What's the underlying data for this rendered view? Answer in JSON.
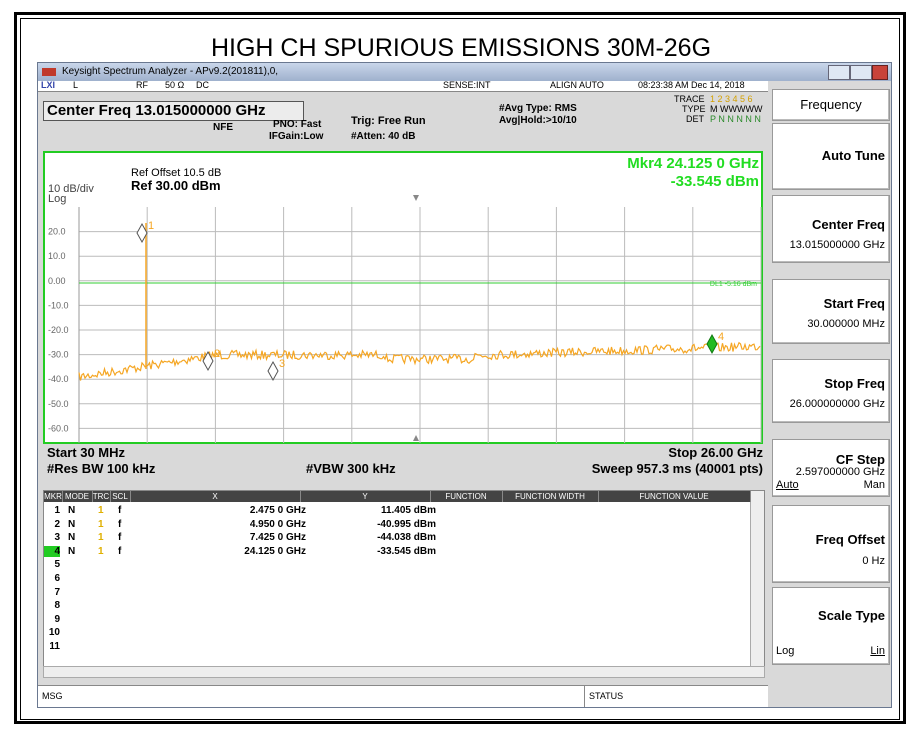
{
  "title": "HIGH CH SPURIOUS EMISSIONS 30M-26G",
  "window": {
    "title": "Keysight Spectrum Analyzer - APv9.2(201811),0,"
  },
  "header": {
    "strip": [
      "LXI",
      "L",
      "RF",
      "50 Ω",
      "DC",
      "SENSE:INT",
      "ALIGN AUTO",
      "08:23:38 AM Dec 14, 2018"
    ],
    "center_freq": "Center Freq 13.015000000 GHz",
    "nfe": "NFE",
    "pno": "PNO: Fast",
    "ifgain": "IFGain:Low",
    "trig": "Trig: Free Run",
    "atten": "#Atten: 40 dB",
    "avg_type": "#Avg Type: RMS",
    "avg_hold": "Avg|Hold:>10/10",
    "trace_label": "TRACE",
    "trace_value": "1 2 3 4 5 6",
    "type_label": "TYPE",
    "type_value": "M WWWWW",
    "det_label": "DET",
    "det_value": "P N N N N N"
  },
  "plot": {
    "ref_offset": "Ref Offset 10.5 dB",
    "ref": "Ref 30.00 dBm",
    "scale": "10 dB/div",
    "log": "Log",
    "y_labels": [
      "20.0",
      "10.0",
      "0.00",
      "-10.0",
      "-20.0",
      "-30.0",
      "-40.0",
      "-50.0",
      "-60.0"
    ],
    "display_line": "DL1 -5.16 dBm",
    "marker_freq": "Mkr4 24.125 0 GHz",
    "marker_amp": "-33.545 dBm",
    "marker_labels": [
      "1",
      "2",
      "3",
      "4"
    ],
    "start": "Start 30 MHz",
    "stop": "Stop 26.00 GHz",
    "res_bw": "#Res BW 100 kHz",
    "vbw": "#VBW 300 kHz",
    "sweep": "Sweep  957.3 ms (40001 pts)"
  },
  "table": {
    "headers": [
      "MKR",
      "MODE",
      "TRC",
      "SCL",
      "X",
      "Y",
      "FUNCTION",
      "FUNCTION WIDTH",
      "FUNCTION VALUE"
    ],
    "rows": [
      [
        "1",
        "N",
        "1",
        "f",
        "2.475 0 GHz",
        "11.405 dBm"
      ],
      [
        "2",
        "N",
        "1",
        "f",
        "4.950 0 GHz",
        "-40.995 dBm"
      ],
      [
        "3",
        "N",
        "1",
        "f",
        "7.425 0 GHz",
        "-44.038 dBm"
      ],
      [
        "4",
        "N",
        "1",
        "f",
        "24.125 0 GHz",
        "-33.545 dBm"
      ],
      [
        "5"
      ],
      [
        "6"
      ],
      [
        "7"
      ],
      [
        "8"
      ],
      [
        "9"
      ],
      [
        "10"
      ],
      [
        "11"
      ]
    ]
  },
  "status": {
    "msg": "MSG",
    "status": "STATUS"
  },
  "softkeys": {
    "menu": "Frequency",
    "auto_tune": "Auto Tune",
    "center_freq": {
      "label": "Center Freq",
      "value": "13.015000000 GHz"
    },
    "start_freq": {
      "label": "Start Freq",
      "value": "30.000000 MHz"
    },
    "stop_freq": {
      "label": "Stop Freq",
      "value": "26.000000000 GHz"
    },
    "cf_step": {
      "label": "CF Step",
      "value": "2.597000000 GHz",
      "left": "Auto",
      "right": "Man"
    },
    "freq_offset": {
      "label": "Freq Offset",
      "value": "0 Hz"
    },
    "scale_type": {
      "label": "Scale Type",
      "left": "Log",
      "right": "Lin"
    }
  }
}
